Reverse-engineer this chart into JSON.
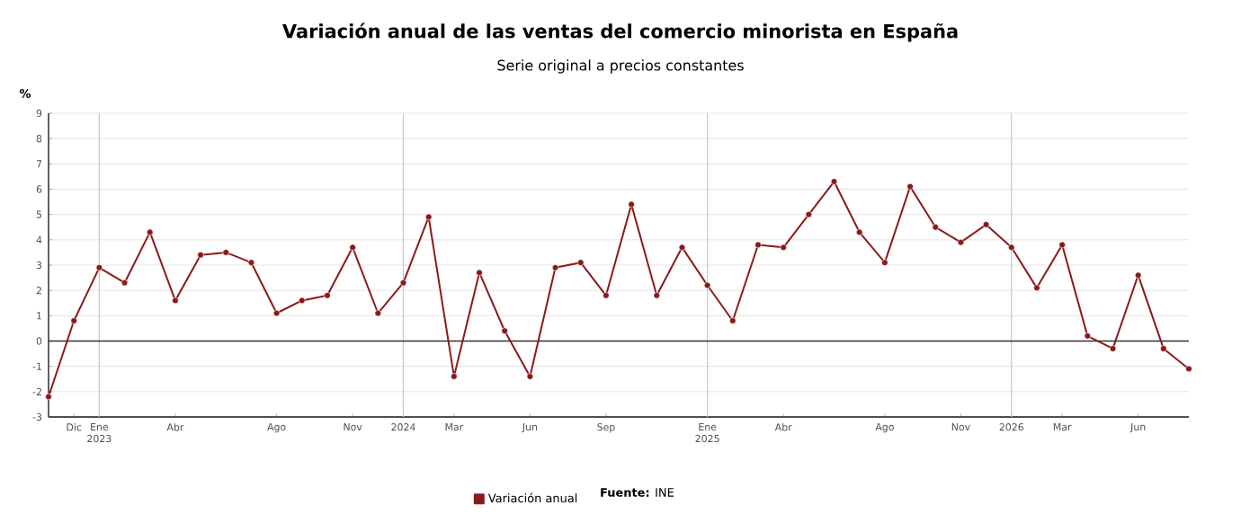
{
  "chart_data": {
    "type": "line",
    "title": "Variación anual de las ventas del comercio minorista en España",
    "subtitle": "Serie original a precios constantes",
    "ylabel": "%",
    "x": [
      "2022-11",
      "2022-12",
      "2023-01",
      "2023-02",
      "2023-03",
      "2023-04",
      "2023-05",
      "2023-06",
      "2023-07",
      "2023-08",
      "2023-09",
      "2023-10",
      "2023-11",
      "2023-12",
      "2024-01",
      "2024-02",
      "2024-03",
      "2024-04",
      "2024-05",
      "2024-06",
      "2024-07",
      "2024-08",
      "2024-09",
      "2024-10",
      "2024-11",
      "2024-12",
      "2025-01",
      "2025-02",
      "2025-03",
      "2025-04",
      "2025-05",
      "2025-06",
      "2025-07",
      "2025-08",
      "2025-09",
      "2025-10",
      "2025-11",
      "2025-12",
      "2026-01",
      "2026-02",
      "2026-03",
      "2026-04",
      "2026-05",
      "2026-06",
      "2026-07",
      "2026-08"
    ],
    "series": [
      {
        "name": "Variación anual",
        "color": "#8b1a1a",
        "values": [
          -2.2,
          0.8,
          2.9,
          2.3,
          4.3,
          1.6,
          3.4,
          3.5,
          3.1,
          1.1,
          1.6,
          1.8,
          3.7,
          1.1,
          2.3,
          4.9,
          -1.4,
          2.7,
          0.4,
          -1.4,
          2.9,
          3.1,
          1.8,
          5.4,
          1.8,
          3.7,
          2.2,
          0.8,
          3.8,
          3.7,
          5.0,
          6.3,
          4.3,
          3.1,
          6.1,
          4.5,
          3.9,
          4.6,
          3.7,
          2.1,
          3.8,
          0.2,
          -0.3,
          2.6,
          -0.3,
          -1.1
        ]
      }
    ],
    "xlim": [
      "2022-11",
      "2026-08"
    ],
    "xticks": [
      {
        "value": "2022-12",
        "label": "Dic"
      },
      {
        "value": "2023-01",
        "label": "Ene 2023"
      },
      {
        "value": "2023-04",
        "label": "Abr"
      },
      {
        "value": "2023-08",
        "label": "Ago"
      },
      {
        "value": "2023-11",
        "label": "Nov"
      },
      {
        "value": "2024-01",
        "label": "2024"
      },
      {
        "value": "2024-03",
        "label": "Mar"
      },
      {
        "value": "2024-06",
        "label": "Jun"
      },
      {
        "value": "2024-09",
        "label": "Sep"
      },
      {
        "value": "2025-01",
        "label": "Ene 2025"
      },
      {
        "value": "2025-04",
        "label": "Abr"
      },
      {
        "value": "2025-08",
        "label": "Ago"
      },
      {
        "value": "2025-11",
        "label": "Nov"
      },
      {
        "value": "2026-01",
        "label": "2026"
      },
      {
        "value": "2026-03",
        "label": "Mar"
      },
      {
        "value": "2026-06",
        "label": "Jun"
      }
    ],
    "ylim": [
      -3,
      9
    ],
    "yticks": [
      -3,
      -2,
      -1,
      0,
      1,
      2,
      3,
      4,
      5,
      6,
      7,
      8,
      9
    ],
    "grid": "y",
    "legend": "bottom",
    "marker": "circle",
    "line_style": "solid",
    "ref_lines": [
      {
        "axis": "x",
        "value": "2023-01",
        "color": "#c8c8c8"
      },
      {
        "axis": "x",
        "value": "2024-01",
        "color": "#c8c8c8"
      },
      {
        "axis": "x",
        "value": "2025-01",
        "color": "#c8c8c8"
      },
      {
        "axis": "x",
        "value": "2026-01",
        "color": "#c8c8c8"
      },
      {
        "axis": "y",
        "value": 0,
        "color": "#333333"
      }
    ],
    "annotations": [
      "**Fuente:** INE"
    ]
  }
}
